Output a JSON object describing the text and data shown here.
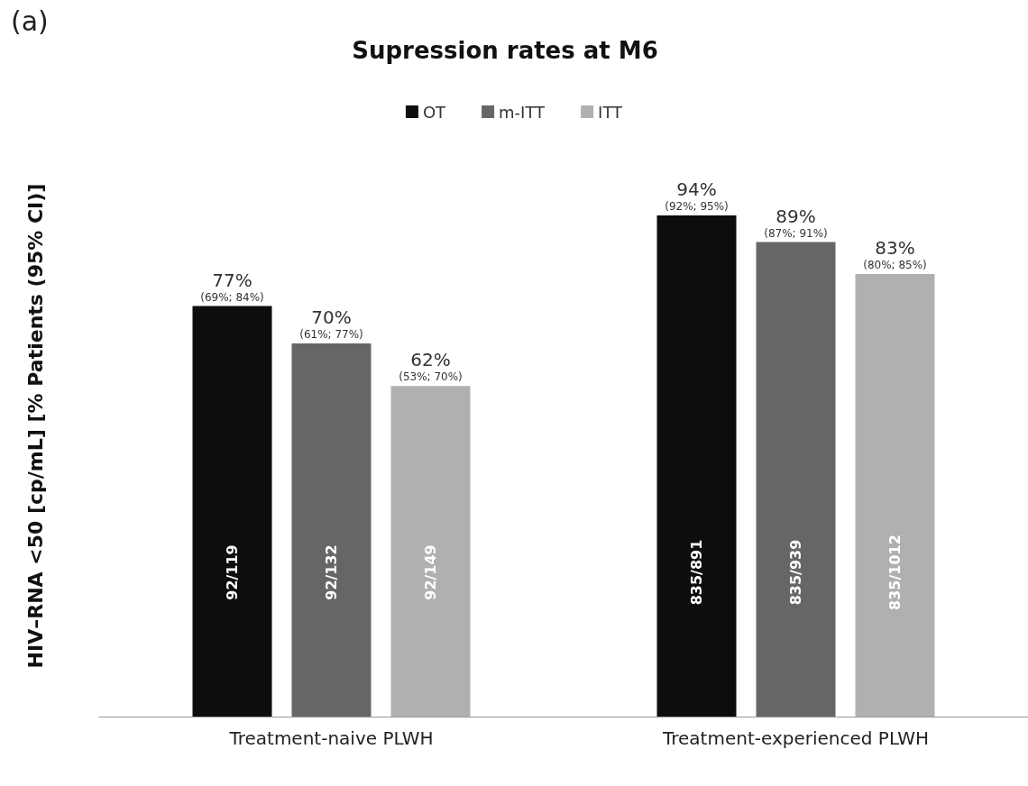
{
  "chart_data": {
    "type": "bar",
    "title": "Supression rates at M6",
    "ylabel": "HIV–RNA <50 [cp/mL] [% Patients (95% CI)]",
    "categories": [
      "Treatment-naive PLWH",
      "Treatment-experienced PLWH"
    ],
    "series": [
      {
        "name": "OT",
        "color": "#0d0d0d",
        "values": [
          77,
          94
        ],
        "value_labels": [
          "77%\n(69%; 84%)",
          "94%\n(92%; 95%)"
        ]
      },
      {
        "name": "m-ITT",
        "color": "#666666",
        "values": [
          70,
          89
        ],
        "value_labels": [
          "70%\n(61%; 77%)",
          "89%\n(87%; 91%)"
        ]
      },
      {
        "name": "ITT",
        "color": "#b0b0b0",
        "values": [
          62,
          83
        ],
        "value_labels": [
          "62%\n(53%; 70%)",
          "83%\n(80%; 85%)"
        ]
      }
    ],
    "annotations": [
      "(a)",
      "92/119",
      "835/891",
      "92/132",
      "835/939",
      "92/149",
      "835/1012"
    ],
    "legend": "top",
    "grid": false
  }
}
